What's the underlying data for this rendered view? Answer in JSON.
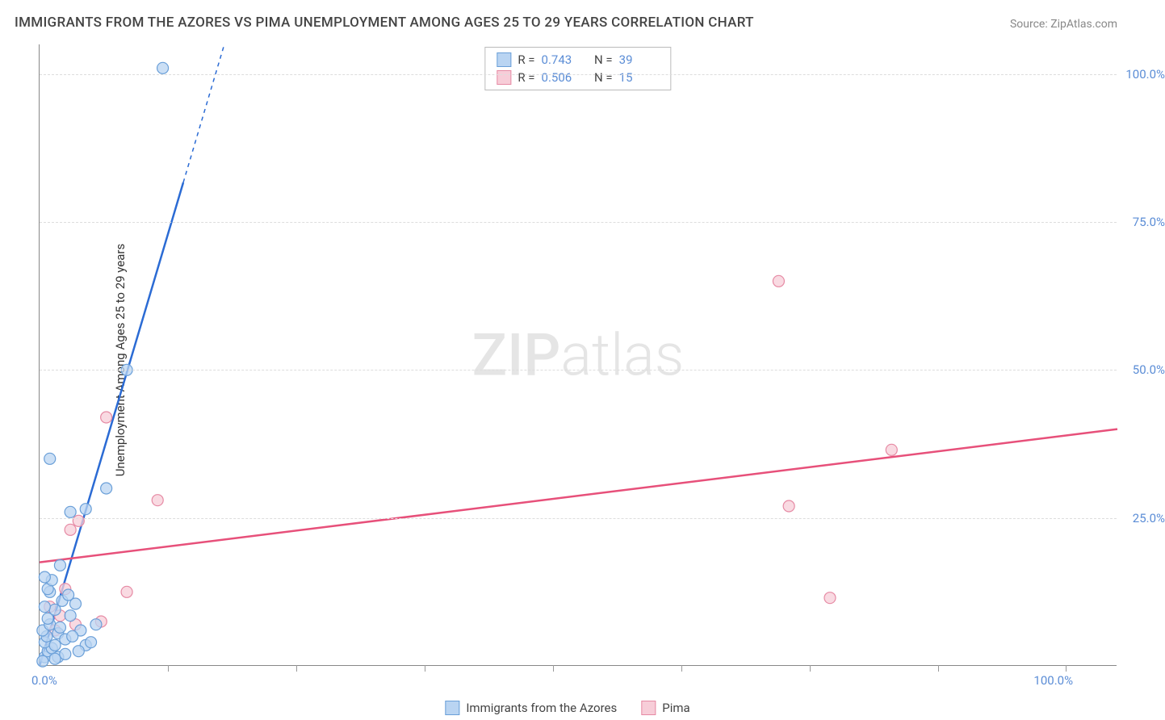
{
  "title": "IMMIGRANTS FROM THE AZORES VS PIMA UNEMPLOYMENT AMONG AGES 25 TO 29 YEARS CORRELATION CHART",
  "source_label": "Source:",
  "source_value": "ZipAtlas.com",
  "y_axis_label": "Unemployment Among Ages 25 to 29 years",
  "watermark_bold": "ZIP",
  "watermark_light": "atlas",
  "chart": {
    "type": "scatter-with-regression",
    "xlim": [
      0,
      105
    ],
    "ylim": [
      0,
      105
    ],
    "y_gridlines": [
      25,
      50,
      75,
      100
    ],
    "x_ticks_minor": [
      12.5,
      25,
      37.5,
      50,
      62.5,
      75,
      87.5,
      100
    ],
    "y_tick_labels": [
      {
        "v": 25,
        "label": "25.0%"
      },
      {
        "v": 50,
        "label": "50.0%"
      },
      {
        "v": 75,
        "label": "75.0%"
      },
      {
        "v": 100,
        "label": "100.0%"
      }
    ],
    "x_tick_labels": [
      {
        "v": 0,
        "label": "0.0%"
      },
      {
        "v": 100,
        "label": "100.0%"
      }
    ],
    "grid_color": "#dddddd",
    "axis_color": "#888888",
    "tick_label_color": "#5b8dd6",
    "background_color": "#ffffff",
    "marker_radius": 7,
    "marker_stroke_width": 1.2,
    "series": [
      {
        "name": "Immigrants from the Azores",
        "color_fill": "#b9d4f2",
        "color_stroke": "#6a9fd8",
        "line_color": "#2b6bd4",
        "line_width": 2.5,
        "R": 0.743,
        "N": 39,
        "regression": {
          "x1": 0,
          "y1": 0,
          "x2": 18,
          "y2": 105,
          "solid_until_x": 14
        },
        "points": [
          [
            0.5,
            1.5
          ],
          [
            0.8,
            2.5
          ],
          [
            1.2,
            3.0
          ],
          [
            0.5,
            4.0
          ],
          [
            1.5,
            3.5
          ],
          [
            0.7,
            5.0
          ],
          [
            1.8,
            5.5
          ],
          [
            2.5,
            4.5
          ],
          [
            0.3,
            6.0
          ],
          [
            1.0,
            7.0
          ],
          [
            2.0,
            6.5
          ],
          [
            0.8,
            8.0
          ],
          [
            1.5,
            9.5
          ],
          [
            3.0,
            8.5
          ],
          [
            0.5,
            10.0
          ],
          [
            2.2,
            11.0
          ],
          [
            1.0,
            12.5
          ],
          [
            3.5,
            10.5
          ],
          [
            0.8,
            13.0
          ],
          [
            2.8,
            12.0
          ],
          [
            4.5,
            3.5
          ],
          [
            5.0,
            4.0
          ],
          [
            3.8,
            2.5
          ],
          [
            1.2,
            14.5
          ],
          [
            0.5,
            15.0
          ],
          [
            2.0,
            17.0
          ],
          [
            3.0,
            26.0
          ],
          [
            4.5,
            26.5
          ],
          [
            6.5,
            30.0
          ],
          [
            1.0,
            35.0
          ],
          [
            8.5,
            50.0
          ],
          [
            12.0,
            101.0
          ],
          [
            0.3,
            0.8
          ],
          [
            1.8,
            1.5
          ],
          [
            2.5,
            2.0
          ],
          [
            4.0,
            6.0
          ],
          [
            5.5,
            7.0
          ],
          [
            3.2,
            5.0
          ],
          [
            1.5,
            1.2
          ]
        ]
      },
      {
        "name": "Pima",
        "color_fill": "#f7cdd8",
        "color_stroke": "#e68aa4",
        "line_color": "#e7507a",
        "line_width": 2.5,
        "R": 0.506,
        "N": 15,
        "regression": {
          "x1": 0,
          "y1": 17.5,
          "x2": 105,
          "y2": 40,
          "solid_until_x": 105
        },
        "points": [
          [
            1.5,
            6.0
          ],
          [
            2.0,
            8.5
          ],
          [
            3.5,
            7.0
          ],
          [
            2.5,
            13.0
          ],
          [
            6.0,
            7.5
          ],
          [
            3.0,
            23.0
          ],
          [
            3.8,
            24.5
          ],
          [
            8.5,
            12.5
          ],
          [
            11.5,
            28.0
          ],
          [
            6.5,
            42.0
          ],
          [
            77.0,
            11.5
          ],
          [
            73.0,
            27.0
          ],
          [
            83.0,
            36.5
          ],
          [
            72.0,
            65.0
          ],
          [
            1.0,
            10.0
          ]
        ]
      }
    ]
  },
  "legend_top": {
    "r_label": "R  =",
    "n_label": "N  ="
  },
  "legend_bottom": {
    "items": [
      {
        "series": 0
      },
      {
        "series": 1
      }
    ]
  }
}
